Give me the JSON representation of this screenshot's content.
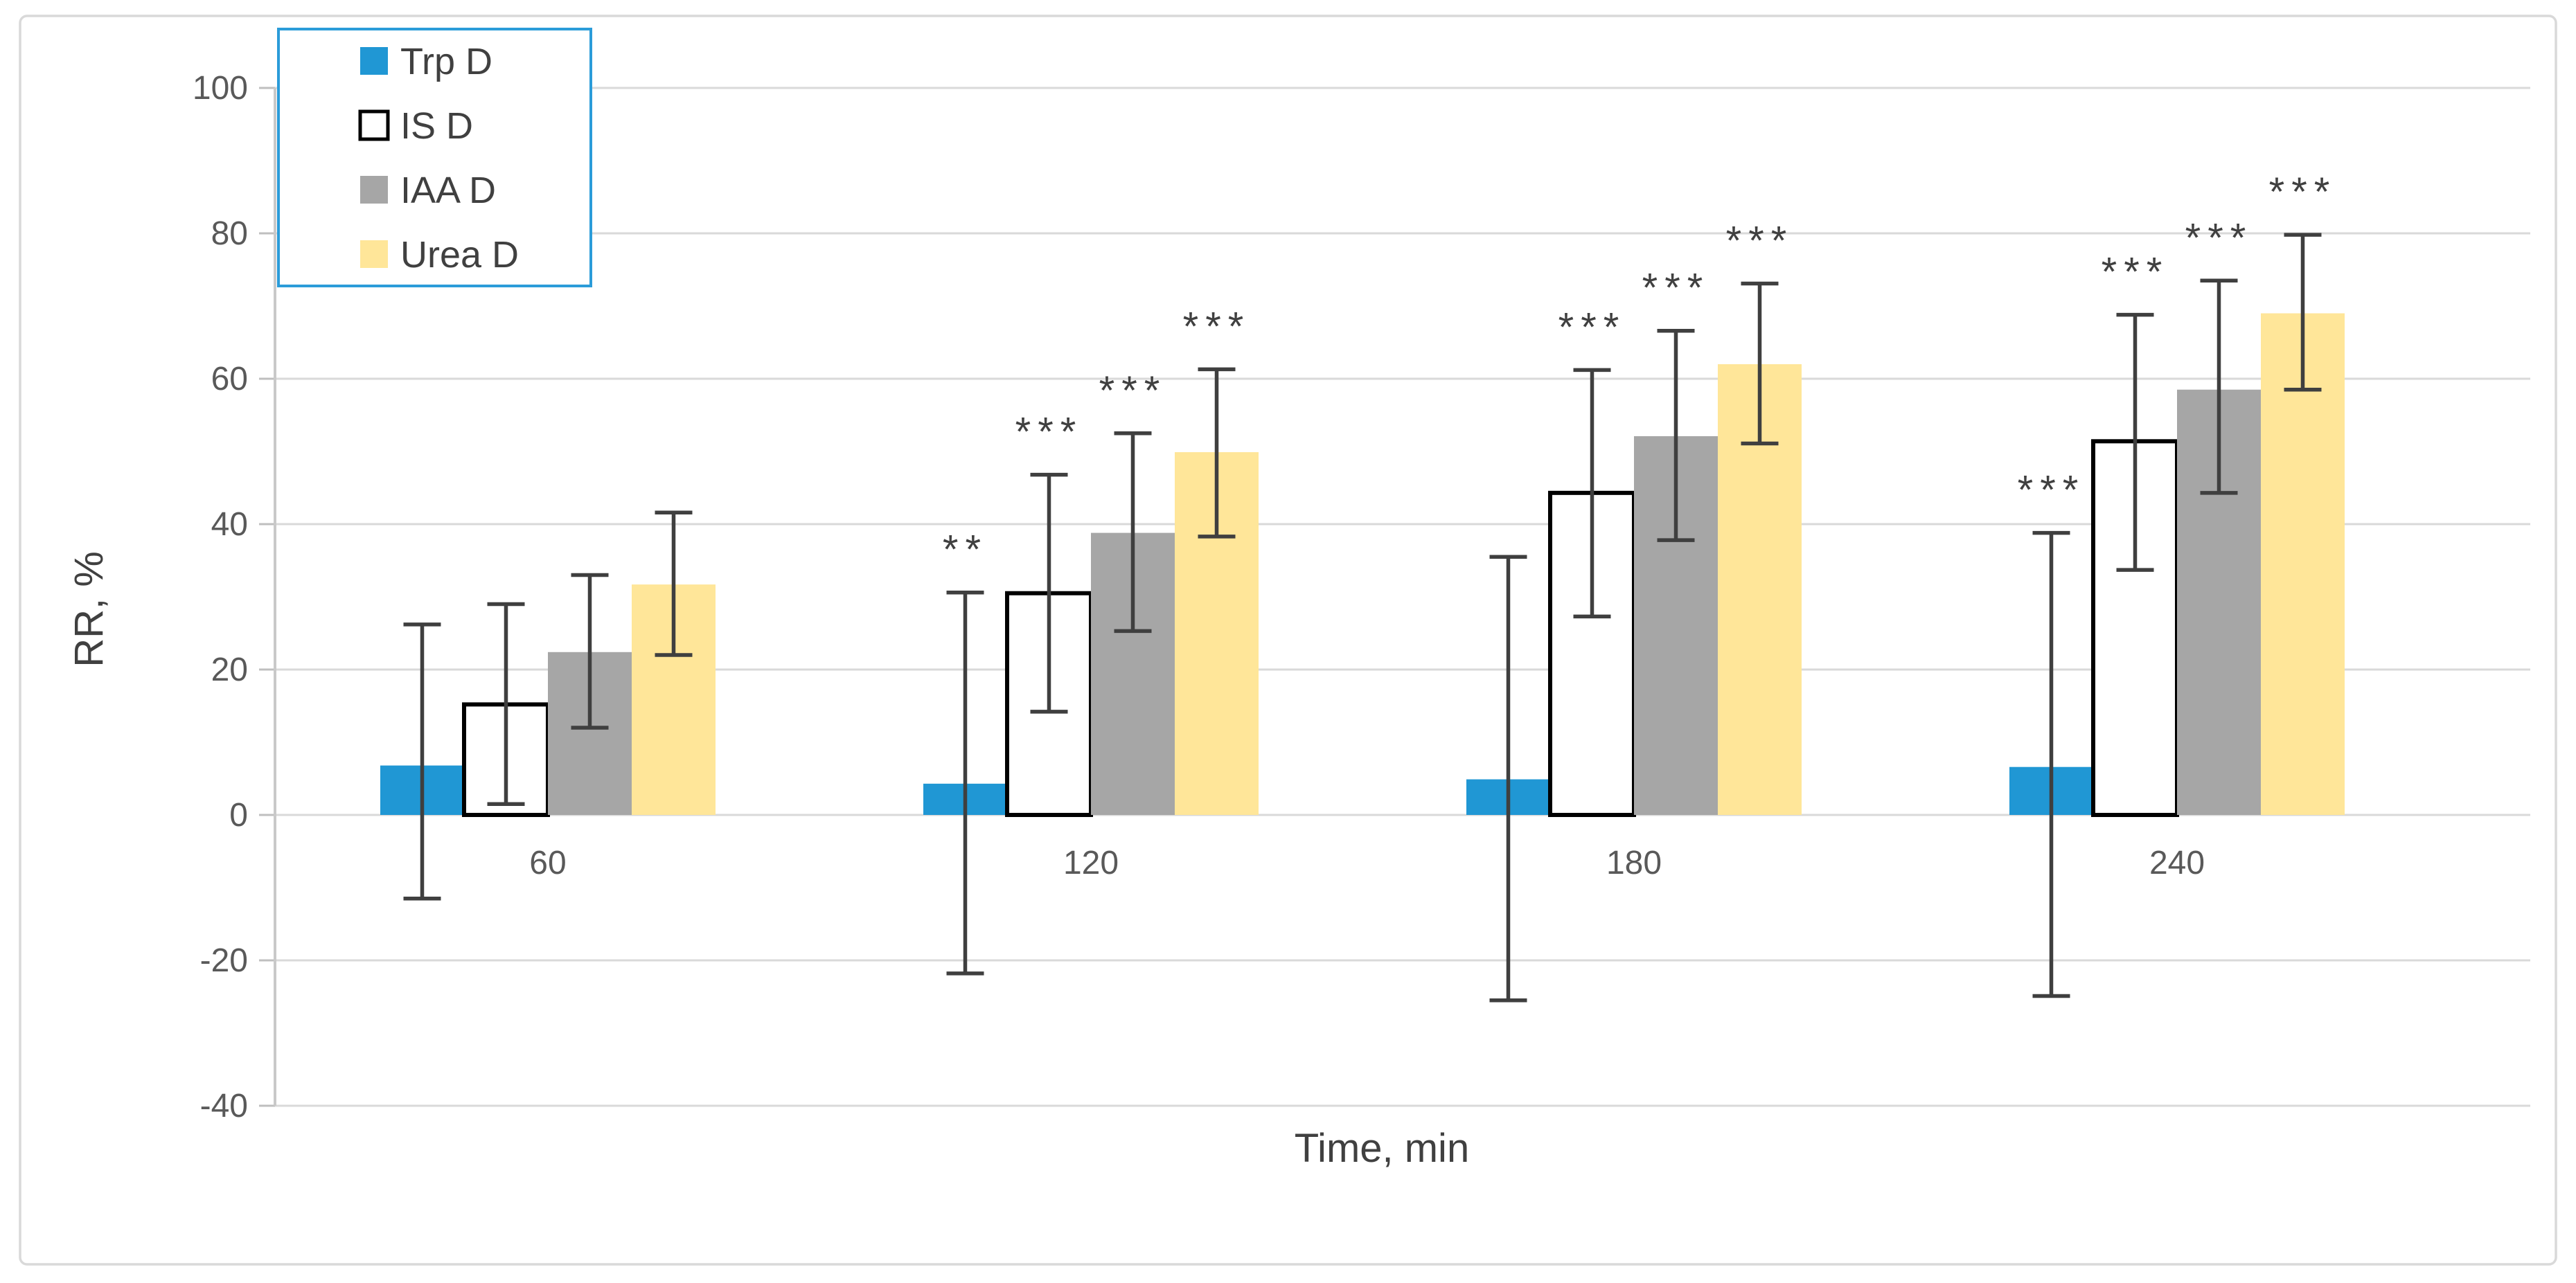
{
  "style": {
    "background": "#FFFFFF",
    "figure_border_color": "#D9D9D9",
    "gridline_color": "#D9D9D9",
    "axis_line_color": "#C9C9C9",
    "tick_mark_color": "#BFBFBF",
    "tick_text_color": "#595959",
    "title_text_color": "#404040",
    "error_bar_color": "#3F3F3F",
    "significance_color": "#404040",
    "legend_border_color": "#2B9CD9",
    "legend_background": "#FFFFFF"
  },
  "chart_data": {
    "type": "bar",
    "title": "",
    "xlabel": "Time, min",
    "ylabel": "RR, %",
    "categories": [
      "60",
      "120",
      "180",
      "240"
    ],
    "y_axis": {
      "min": -40,
      "max": 100,
      "step": 20,
      "ticks": [
        100,
        80,
        60,
        40,
        20,
        0,
        -20,
        -40
      ]
    },
    "grid": "horizontal",
    "legend_position": "top-left",
    "significance_note_symbols": [
      "**",
      "***"
    ],
    "series": [
      {
        "name": "Trp D",
        "color": "#2097D4",
        "border": null,
        "values": [
          6.8,
          4.3,
          4.9,
          6.6
        ],
        "error_low": [
          -11.5,
          -21.8,
          -25.5,
          -24.9
        ],
        "error_high": [
          26.2,
          30.6,
          35.5,
          38.8
        ],
        "significance": [
          "",
          "**",
          "",
          "***"
        ]
      },
      {
        "name": "IS D",
        "color": "#FFFFFF",
        "border": "#000000",
        "values": [
          15.2,
          30.5,
          44.3,
          51.4
        ],
        "error_low": [
          1.5,
          14.2,
          27.3,
          33.7
        ],
        "error_high": [
          29.0,
          46.8,
          61.2,
          68.8
        ],
        "significance": [
          "",
          "***",
          "***",
          "***"
        ]
      },
      {
        "name": "IAA D",
        "color": "#A6A6A6",
        "border": null,
        "values": [
          22.4,
          38.8,
          52.1,
          58.5
        ],
        "error_low": [
          12.0,
          25.3,
          37.8,
          44.3
        ],
        "error_high": [
          33.0,
          52.5,
          66.6,
          73.5
        ],
        "significance": [
          "",
          "***",
          "***",
          "***"
        ]
      },
      {
        "name": "Urea D",
        "color": "#FFE699",
        "border": null,
        "values": [
          31.7,
          49.9,
          62.0,
          69.0
        ],
        "error_low": [
          22.0,
          38.3,
          51.1,
          58.5
        ],
        "error_high": [
          41.6,
          61.3,
          73.1,
          79.8
        ],
        "significance": [
          "",
          "***",
          "***",
          "***"
        ]
      }
    ]
  }
}
